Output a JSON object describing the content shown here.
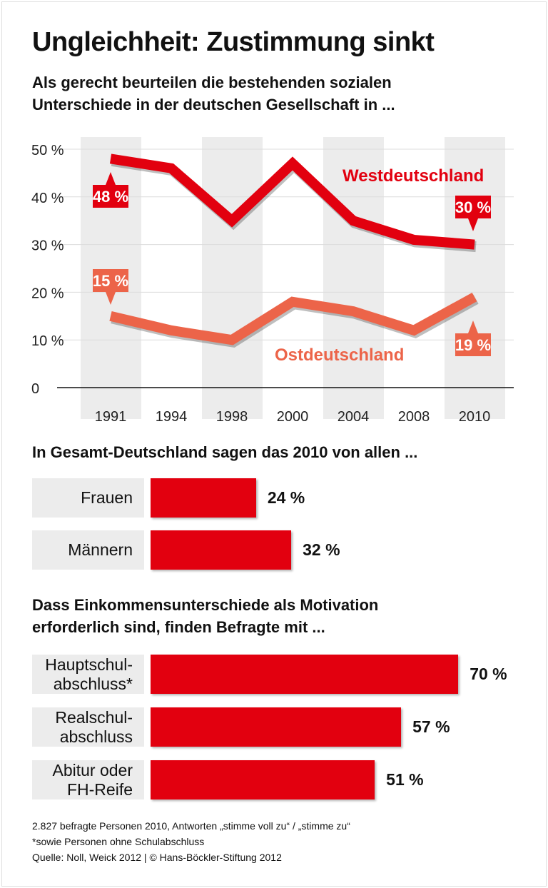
{
  "title": "Ungleichheit: Zustimmung sinkt",
  "colors": {
    "west": "#e2000f",
    "east": "#ec6449",
    "band": "#ececec",
    "bar": "#e2000f"
  },
  "chart_data": [
    {
      "type": "line",
      "subtitle": "Als gerecht beurteilen die bestehenden sozialen\nUnterschiede in der deutschen Gesellschaft in ...",
      "categories": [
        "1991",
        "1994",
        "1998",
        "2000",
        "2004",
        "2008",
        "2010"
      ],
      "y_ticks": [
        "0",
        "10 %",
        "20 %",
        "30 %",
        "40 %",
        "50 %"
      ],
      "ylim": [
        0,
        50
      ],
      "grid": true,
      "series": [
        {
          "name": "Westdeutschland",
          "values": [
            48,
            46,
            35,
            47,
            35,
            31,
            30
          ],
          "labels": {
            "first": "48 %",
            "last": "30 %"
          }
        },
        {
          "name": "Ostdeutschland",
          "values": [
            15,
            12,
            10,
            18,
            16,
            12,
            19
          ],
          "labels": {
            "first": "15 %",
            "last": "19 %"
          }
        }
      ]
    },
    {
      "type": "bar",
      "subtitle": "In Gesamt-Deutschland sagen das 2010 von allen ...",
      "categories": [
        "Frauen",
        "Männern"
      ],
      "values": [
        24,
        32
      ],
      "value_labels": [
        "24 %",
        "32 %"
      ]
    },
    {
      "type": "bar",
      "subtitle": "Dass Einkommensunterschiede als Motivation\nerforderlich sind, finden Befragte mit ...",
      "categories": [
        "Hauptschul-\nabschluss*",
        "Realschul-\nabschluss",
        "Abitur oder\nFH-Reife"
      ],
      "values": [
        70,
        57,
        51
      ],
      "value_labels": [
        "70 %",
        "57 %",
        "51 %"
      ]
    }
  ],
  "footer": "2.827 befragte Personen 2010, Antworten „stimme voll zu“ / „stimme zu“\n*sowie Personen ohne Schulabschluss\nQuelle: Noll, Weick 2012 | © Hans-Böckler-Stiftung 2012"
}
